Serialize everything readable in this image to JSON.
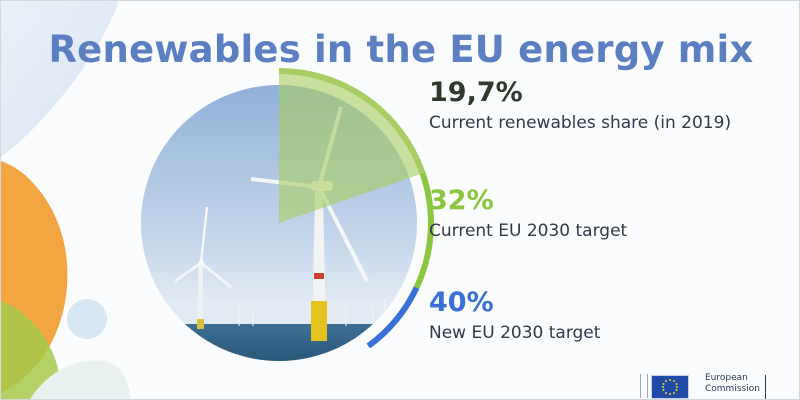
{
  "title": "Renewables in the EU energy mix",
  "chart_data": {
    "type": "pie",
    "title": "Renewables in the EU energy mix",
    "unit": "%",
    "slices": [
      {
        "value": 19.7,
        "display": "19,7%",
        "label": "Current renewables share (in 2019)",
        "color": "#a8cd62"
      },
      {
        "value": 32,
        "display": "32%",
        "label": "Current EU 2030 target",
        "color": "#8cc63f"
      },
      {
        "value": 40,
        "display": "40%",
        "label": "New EU 2030 target",
        "color": "#3a6fd8"
      }
    ]
  },
  "logo": {
    "line1": "European",
    "line2": "Commission"
  }
}
